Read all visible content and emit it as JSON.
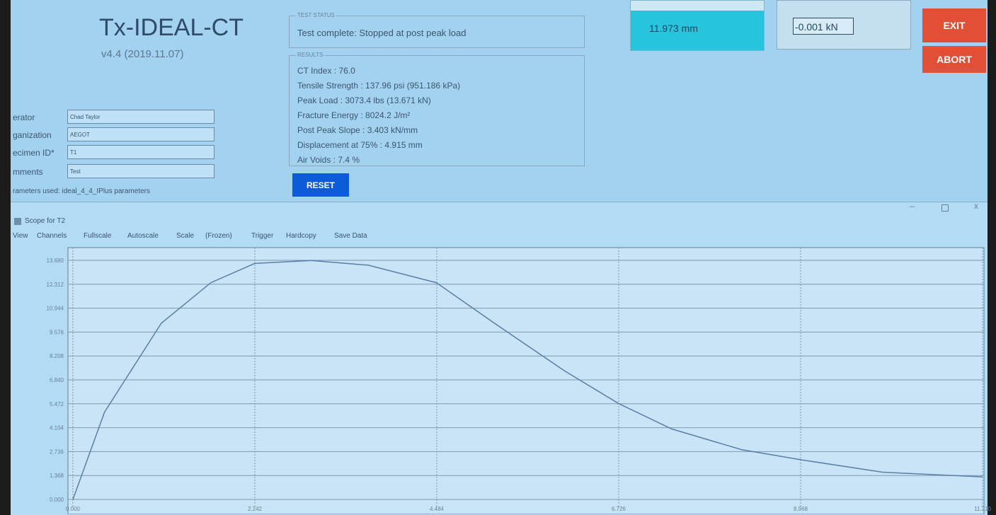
{
  "app": {
    "title": "Tx-IDEAL-CT",
    "version": "v4.4 (2019.11.07)"
  },
  "form": {
    "fields": [
      {
        "label": "erator",
        "value": "Chad Taylor"
      },
      {
        "label": "ganization",
        "value": "AEGOT"
      },
      {
        "label": "ecimen ID*",
        "value": "T1"
      },
      {
        "label": "mments",
        "value": "Test"
      }
    ],
    "parameters": "rameters used: ideal_4_4_IPlus parameters"
  },
  "test_status": {
    "legend": "TEST STATUS",
    "text": "Test complete: Stopped at post peak load"
  },
  "results": {
    "legend": "RESULTS",
    "lines": [
      "CT Index : 76.0",
      "Tensile Strength : 137.96 psi (951.186 kPa)",
      "Peak Load : 3073.4 lbs (13.671 kN)",
      "Fracture Energy : 8024.2 J/m²",
      "Post Peak Slope : 3.403 kN/mm",
      "Displacement at 75% : 4.915 mm",
      "Air Voids : 7.4 %"
    ]
  },
  "buttons": {
    "reset": "RESET",
    "exit": "EXIT",
    "abort": "ABORT"
  },
  "readouts": {
    "displacement": "11.973 mm",
    "load": "-0.001 kN"
  },
  "scope": {
    "title": "Scope for T2",
    "menu": [
      "View",
      "Channels",
      "Fullscale",
      "Autoscale",
      "Scale",
      "(Frozen)",
      "Trigger",
      "Hardcopy",
      "Save Data"
    ]
  },
  "chart_data": {
    "type": "line",
    "x": [
      0,
      0.39,
      1.09,
      1.7,
      2.24,
      2.94,
      3.64,
      4.48,
      5.19,
      6.06,
      6.73,
      7.38,
      8.24,
      8.97,
      9.98,
      11.21
    ],
    "values": [
      0,
      5.0,
      10.08,
      12.4,
      13.5,
      13.67,
      13.4,
      12.4,
      10.1,
      7.35,
      5.47,
      4.03,
      2.85,
      2.27,
      1.56,
      1.29
    ],
    "color": "#5a7fa6",
    "xlim": [
      0,
      11.21
    ],
    "ylim": [
      0,
      13.68
    ],
    "xticks": [
      {
        "value": 0,
        "label": "0.000"
      },
      2.242,
      4.484,
      6.726,
      8.968,
      {
        "value": 11.21,
        "label": "11.210"
      }
    ],
    "yticks": [
      {
        "value": 0,
        "label": "0.000"
      },
      1.368,
      2.736,
      4.104,
      5.472,
      {
        "value": 6.84,
        "label": "6.840"
      },
      8.208,
      9.576,
      10.944,
      12.312,
      {
        "value": 13.68,
        "label": "13.680"
      }
    ],
    "grid": true
  }
}
